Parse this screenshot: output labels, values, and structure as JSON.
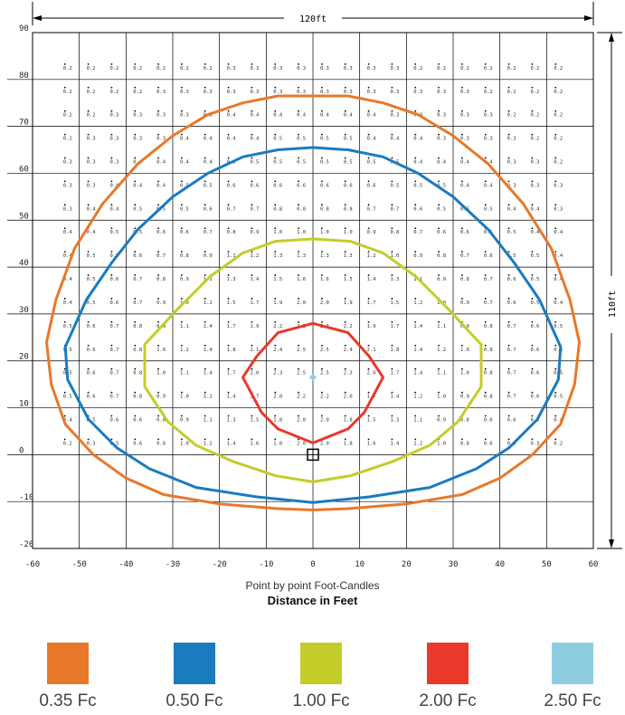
{
  "chart_data": {
    "type": "contour",
    "xlabel": "Distance in Feet",
    "caption": "Point by point Foot-Candles",
    "xlim": [
      -60,
      60
    ],
    "ylim": [
      -20,
      90
    ],
    "x_ticks": [
      "-60",
      "-50",
      "-40",
      "-30",
      "-20",
      "-10",
      "0",
      "10",
      "20",
      "30",
      "40",
      "50",
      "60"
    ],
    "y_ticks": [
      "-20",
      "-10",
      "0",
      "10",
      "20",
      "30",
      "40",
      "50",
      "60",
      "70",
      "80",
      "90"
    ],
    "dimension_width": "120ft",
    "dimension_height": "110ft",
    "fixture_position": [
      0,
      0
    ],
    "peak_marker": [
      0,
      16.5
    ],
    "grid_x": [
      -52.5,
      -47.5,
      -42.5,
      -37.5,
      -32.5,
      -27.5,
      -22.5,
      -17.5,
      -12.5,
      -7.5,
      -2.5,
      2.5,
      7.5,
      12.5,
      17.5,
      22.5,
      27.5,
      32.5,
      37.5,
      42.5,
      47.5,
      52.5
    ],
    "grid_y": [
      82.5,
      77.5,
      72.5,
      67.5,
      62.5,
      57.5,
      52.5,
      47.5,
      42.5,
      37.5,
      32.5,
      27.5,
      22.5,
      17.5,
      12.5,
      7.5,
      2.5
    ],
    "grid_values": [
      [
        "0.2",
        "0.2",
        "0.2",
        "0.2",
        "0.2",
        "0.2",
        "0.2",
        "0.3",
        "0.3",
        "0.3",
        "0.3",
        "0.3",
        "0.3",
        "0.3",
        "0.3",
        "0.2",
        "0.2",
        "0.2",
        "0.2",
        "0.2",
        "0.2",
        "0.2"
      ],
      [
        "0.2",
        "0.2",
        "0.2",
        "0.2",
        "0.3",
        "0.3",
        "0.3",
        "0.3",
        "0.3",
        "0.3",
        "0.3",
        "0.3",
        "0.3",
        "0.3",
        "0.3",
        "0.3",
        "0.3",
        "0.3",
        "0.2",
        "0.2",
        "0.2",
        "0.2"
      ],
      [
        "0.2",
        "0.2",
        "0.3",
        "0.3",
        "0.3",
        "0.3",
        "0.3",
        "0.4",
        "0.4",
        "0.4",
        "0.4",
        "0.4",
        "0.4",
        "0.4",
        "0.3",
        "0.3",
        "0.3",
        "0.3",
        "0.3",
        "0.2",
        "0.2",
        "0.2"
      ],
      [
        "0.2",
        "0.3",
        "0.3",
        "0.3",
        "0.3",
        "0.4",
        "0.4",
        "0.4",
        "0.4",
        "0.5",
        "0.5",
        "0.5",
        "0.5",
        "0.4",
        "0.4",
        "0.4",
        "0.3",
        "0.3",
        "0.3",
        "0.3",
        "0.2",
        "0.2"
      ],
      [
        "0.3",
        "0.3",
        "0.3",
        "0.4",
        "0.4",
        "0.4",
        "0.4",
        "0.5",
        "0.5",
        "0.5",
        "0.5",
        "0.5",
        "0.5",
        "0.5",
        "0.5",
        "0.4",
        "0.4",
        "0.4",
        "0.4",
        "0.3",
        "0.3",
        "0.2"
      ],
      [
        "0.3",
        "0.3",
        "0.4",
        "0.4",
        "0.4",
        "0.5",
        "0.5",
        "0.6",
        "0.6",
        "0.6",
        "0.6",
        "0.6",
        "0.6",
        "0.6",
        "0.5",
        "0.5",
        "0.5",
        "0.4",
        "0.4",
        "0.3",
        "0.3",
        "0.3"
      ],
      [
        "0.3",
        "0.4",
        "0.4",
        "0.5",
        "0.5",
        "0.5",
        "0.6",
        "0.7",
        "0.7",
        "0.8",
        "0.8",
        "0.8",
        "0.8",
        "0.7",
        "0.7",
        "0.6",
        "0.5",
        "0.5",
        "0.5",
        "0.4",
        "0.4",
        "0.3"
      ],
      [
        "0.4",
        "0.4",
        "0.5",
        "0.5",
        "0.6",
        "0.6",
        "0.7",
        "0.8",
        "0.9",
        "1.0",
        "1.0",
        "1.0",
        "1.0",
        "0.9",
        "0.8",
        "0.7",
        "0.6",
        "0.6",
        "0.5",
        "0.5",
        "0.4",
        "0.4"
      ],
      [
        "0.4",
        "0.5",
        "0.5",
        "0.6",
        "0.7",
        "0.8",
        "0.9",
        "1.1",
        "1.2",
        "1.3",
        "1.3",
        "1.3",
        "1.3",
        "1.2",
        "1.0",
        "0.9",
        "0.8",
        "0.7",
        "0.6",
        "0.5",
        "0.5",
        "0.4"
      ],
      [
        "0.4",
        "0.5",
        "0.6",
        "0.7",
        "0.8",
        "0.9",
        "1.1",
        "1.3",
        "1.4",
        "1.5",
        "1.6",
        "1.6",
        "1.5",
        "1.4",
        "1.3",
        "1.1",
        "0.9",
        "0.8",
        "0.7",
        "0.6",
        "0.5",
        "0.4"
      ],
      [
        "0.4",
        "0.5",
        "0.6",
        "0.7",
        "0.9",
        "1.0",
        "1.2",
        "1.5",
        "1.7",
        "1.9",
        "2.0",
        "2.0",
        "1.9",
        "1.7",
        "1.5",
        "1.2",
        "1.0",
        "0.9",
        "0.7",
        "0.6",
        "0.5",
        "0.4"
      ],
      [
        "0.5",
        "0.6",
        "0.7",
        "0.8",
        "0.9",
        "1.1",
        "1.4",
        "1.7",
        "1.9",
        "2.2",
        "2.3",
        "2.3",
        "2.2",
        "1.9",
        "1.7",
        "1.4",
        "1.1",
        "0.9",
        "0.8",
        "0.7",
        "0.6",
        "0.5"
      ],
      [
        "0.5",
        "0.6",
        "0.7",
        "0.8",
        "1.0",
        "1.2",
        "1.4",
        "1.8",
        "2.1",
        "2.4",
        "2.5",
        "2.5",
        "2.4",
        "2.1",
        "1.8",
        "1.4",
        "1.2",
        "1.0",
        "0.8",
        "0.7",
        "0.6",
        "0.5"
      ],
      [
        "0.5",
        "0.6",
        "0.7",
        "0.8",
        "1.0",
        "1.1",
        "1.4",
        "1.7",
        "2.0",
        "2.3",
        "2.5",
        "2.5",
        "2.3",
        "2.0",
        "1.7",
        "1.4",
        "1.1",
        "1.0",
        "0.8",
        "0.7",
        "0.6",
        "0.5"
      ],
      [
        "0.5",
        "0.6",
        "0.7",
        "0.8",
        "0.9",
        "1.0",
        "1.2",
        "1.4",
        "1.7",
        "2.0",
        "2.2",
        "2.2",
        "2.0",
        "1.7",
        "1.4",
        "1.2",
        "1.0",
        "0.9",
        "0.8",
        "0.7",
        "0.6",
        "0.5"
      ],
      [
        "0.4",
        "0.5",
        "0.6",
        "0.6",
        "0.8",
        "0.9",
        "1.1",
        "1.3",
        "1.5",
        "1.8",
        "2.0",
        "2.0",
        "1.8",
        "1.5",
        "1.3",
        "1.1",
        "0.9",
        "0.8",
        "0.6",
        "0.6",
        "0.5",
        "0.4"
      ],
      [
        "0.2",
        "0.3",
        "0.5",
        "0.6",
        "0.8",
        "1.0",
        "1.2",
        "1.4",
        "1.6",
        "1.8",
        "2.0",
        "2.0",
        "1.8",
        "1.6",
        "1.4",
        "1.2",
        "1.0",
        "0.8",
        "0.6",
        "0.5",
        "0.3",
        "0.2"
      ]
    ],
    "series": [
      {
        "name": "0.35 Fc",
        "color": "#e8782a",
        "points": [
          [
            0,
            76.5
          ],
          [
            -7.5,
            76.5
          ],
          [
            -15,
            75
          ],
          [
            -22.5,
            72.5
          ],
          [
            -30,
            68
          ],
          [
            -37.5,
            62
          ],
          [
            -45,
            53.5
          ],
          [
            -51,
            44
          ],
          [
            -55,
            33
          ],
          [
            -57,
            24
          ],
          [
            -56,
            15
          ],
          [
            -53,
            6.5
          ],
          [
            -47,
            0
          ],
          [
            -40,
            -5
          ],
          [
            -32,
            -8.5
          ],
          [
            -20,
            -10.5
          ],
          [
            -7.5,
            -11.5
          ],
          [
            0,
            -11.8
          ],
          [
            7.5,
            -11.5
          ],
          [
            20,
            -10.5
          ],
          [
            32,
            -8.5
          ],
          [
            40,
            -5
          ],
          [
            47,
            0
          ],
          [
            53,
            6.5
          ],
          [
            56,
            15
          ],
          [
            57,
            24
          ],
          [
            55,
            33
          ],
          [
            51,
            44
          ],
          [
            45,
            53.5
          ],
          [
            37.5,
            62
          ],
          [
            30,
            68
          ],
          [
            22.5,
            72.5
          ],
          [
            15,
            75
          ],
          [
            7.5,
            76.5
          ],
          [
            0,
            76.5
          ]
        ]
      },
      {
        "name": "0.50 Fc",
        "color": "#1a7bbf",
        "points": [
          [
            0,
            65.5
          ],
          [
            -7.5,
            65
          ],
          [
            -15,
            63.5
          ],
          [
            -22.5,
            60
          ],
          [
            -30,
            55
          ],
          [
            -37.5,
            48
          ],
          [
            -43,
            41
          ],
          [
            -48.5,
            33
          ],
          [
            -53,
            23
          ],
          [
            -52.5,
            16
          ],
          [
            -48,
            7.5
          ],
          [
            -42,
            1.5
          ],
          [
            -35,
            -3
          ],
          [
            -25,
            -7
          ],
          [
            -12,
            -9
          ],
          [
            0,
            -10.2
          ],
          [
            12,
            -9
          ],
          [
            25,
            -7
          ],
          [
            35,
            -3
          ],
          [
            42,
            1.5
          ],
          [
            48,
            7.5
          ],
          [
            52.5,
            16
          ],
          [
            53,
            23
          ],
          [
            48.5,
            33
          ],
          [
            43,
            41
          ],
          [
            37.5,
            48
          ],
          [
            30,
            55
          ],
          [
            22.5,
            60
          ],
          [
            15,
            63.5
          ],
          [
            7.5,
            65
          ],
          [
            0,
            65.5
          ]
        ]
      },
      {
        "name": "1.00 Fc",
        "color": "#c4cc2a",
        "points": [
          [
            0,
            46
          ],
          [
            -8,
            45.5
          ],
          [
            -15,
            43
          ],
          [
            -22,
            38
          ],
          [
            -29,
            31
          ],
          [
            -36,
            23.5
          ],
          [
            -36,
            14.5
          ],
          [
            -31,
            7
          ],
          [
            -25,
            2
          ],
          [
            -17,
            -1.5
          ],
          [
            -8,
            -4.5
          ],
          [
            0,
            -5.8
          ],
          [
            8,
            -4.5
          ],
          [
            17,
            -1.5
          ],
          [
            25,
            2
          ],
          [
            31,
            7
          ],
          [
            36,
            14.5
          ],
          [
            36,
            23.5
          ],
          [
            29,
            31
          ],
          [
            22,
            38
          ],
          [
            15,
            43
          ],
          [
            8,
            45.5
          ],
          [
            0,
            46
          ]
        ]
      },
      {
        "name": "2.00 Fc",
        "color": "#e8392a",
        "points": [
          [
            0,
            28
          ],
          [
            -7.5,
            26
          ],
          [
            -12,
            21
          ],
          [
            -15,
            16.5
          ],
          [
            -11,
            9
          ],
          [
            -7.5,
            5.5
          ],
          [
            0,
            2.5
          ],
          [
            7.5,
            5.5
          ],
          [
            11,
            9
          ],
          [
            15,
            16.5
          ],
          [
            12,
            21
          ],
          [
            7.5,
            26
          ],
          [
            0,
            28
          ]
        ]
      },
      {
        "name": "2.50 Fc",
        "color": "#8ecce0",
        "points": [
          [
            0,
            16.5
          ]
        ]
      }
    ]
  }
}
